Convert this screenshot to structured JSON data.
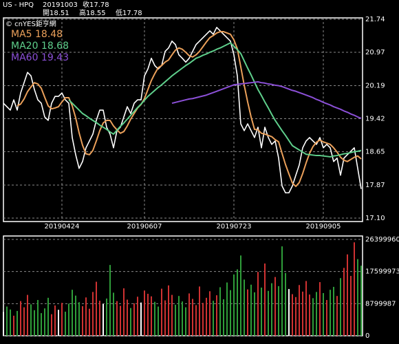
{
  "header": {
    "symbol": "US - HPQ",
    "date": "20191003",
    "close": "收17.78",
    "open": "開18.51",
    "high": "高18.55",
    "low": "低17.78",
    "watermark": "© cnYES鉅亨網"
  },
  "chart_data": [
    {
      "type": "line",
      "categories": [
        null,
        null,
        null,
        null,
        null,
        null,
        null,
        null,
        null,
        null,
        null,
        null,
        null,
        null,
        null,
        null,
        null,
        "20190424",
        null,
        null,
        null,
        null,
        null,
        null,
        null,
        null,
        null,
        null,
        null,
        null,
        null,
        null,
        null,
        null,
        null,
        null,
        null,
        null,
        null,
        null,
        null,
        "20190607",
        null,
        null,
        null,
        null,
        null,
        null,
        null,
        null,
        null,
        null,
        null,
        null,
        null,
        null,
        null,
        null,
        null,
        null,
        null,
        null,
        null,
        null,
        null,
        null,
        null,
        "20190723",
        null,
        null,
        null,
        null,
        null,
        null,
        null,
        null,
        null,
        null,
        null,
        null,
        null,
        null,
        null,
        null,
        null,
        null,
        null,
        null,
        null,
        null,
        null,
        null,
        null,
        "20190905",
        null,
        null,
        null,
        null,
        null,
        null,
        null,
        null,
        null,
        null,
        null
      ],
      "ylim": [
        17.1,
        21.74
      ],
      "yticks": [
        {
          "value": 17.1,
          "label": "17.10"
        },
        17.87,
        18.65,
        19.42,
        20.19,
        20.97,
        21.74
      ],
      "grid": true,
      "series": [
        {
          "color": "#ffffff",
          "values": [
            19.78,
            19.7,
            19.62,
            19.86,
            19.62,
            20.02,
            20.26,
            20.5,
            20.42,
            20.1,
            19.86,
            19.78,
            19.46,
            19.38,
            19.78,
            19.94,
            19.94,
            20.02,
            19.86,
            19.78,
            18.98,
            18.58,
            18.26,
            18.42,
            18.74,
            18.9,
            19.06,
            19.38,
            19.62,
            19.62,
            19.22,
            19.06,
            18.74,
            19.14,
            19.22,
            19.46,
            19.7,
            19.54,
            19.78,
            19.86,
            19.86,
            20.42,
            20.58,
            20.83,
            20.66,
            20.58,
            20.66,
            20.99,
            21.07,
            21.23,
            21.15,
            20.91,
            20.83,
            20.74,
            20.83,
            20.99,
            21.15,
            21.23,
            21.31,
            21.39,
            21.47,
            21.39,
            21.55,
            21.47,
            21.39,
            21.31,
            21.23,
            20.91,
            20.42,
            19.3,
            19.14,
            19.3,
            19.14,
            18.98,
            19.22,
            18.74,
            19.22,
            18.98,
            18.82,
            18.9,
            18.5,
            17.85,
            17.69,
            17.69,
            17.85,
            18.1,
            18.34,
            18.74,
            18.9,
            18.98,
            18.9,
            18.82,
            18.98,
            18.74,
            18.82,
            18.74,
            18.42,
            18.5,
            18.1,
            18.5,
            18.58,
            18.66,
            18.74,
            18.26,
            17.78
          ]
        },
        {
          "name": "MA5 18.48",
          "color": "#eba05a",
          "values": [
            null,
            null,
            null,
            null,
            19.72,
            19.76,
            19.88,
            20.05,
            20.16,
            20.26,
            20.23,
            20.13,
            19.92,
            19.72,
            19.65,
            19.67,
            19.7,
            19.81,
            19.91,
            19.91,
            19.72,
            19.44,
            19.09,
            18.8,
            18.6,
            18.58,
            18.68,
            18.9,
            19.14,
            19.32,
            19.38,
            19.38,
            19.25,
            19.16,
            19.08,
            19.12,
            19.25,
            19.41,
            19.54,
            19.67,
            19.75,
            19.89,
            20.1,
            20.31,
            20.47,
            20.61,
            20.66,
            20.74,
            20.79,
            20.91,
            21.02,
            21.07,
            21.04,
            20.97,
            20.89,
            20.86,
            20.91,
            20.99,
            21.1,
            21.21,
            21.31,
            21.36,
            21.42,
            21.45,
            21.45,
            21.42,
            21.39,
            21.26,
            21.05,
            20.63,
            20.2,
            19.81,
            19.46,
            19.17,
            19.16,
            19.08,
            19.06,
            19.03,
            19.0,
            18.93,
            18.88,
            18.61,
            18.35,
            18.13,
            17.92,
            17.84,
            17.93,
            18.14,
            18.39,
            18.61,
            18.77,
            18.87,
            18.92,
            18.88,
            18.85,
            18.82,
            18.74,
            18.64,
            18.52,
            18.45,
            18.42,
            18.47,
            18.52,
            18.55,
            18.48
          ]
        },
        {
          "name": "MA20 18.68",
          "color": "#5fd08c",
          "values": [
            null,
            null,
            null,
            null,
            null,
            null,
            null,
            null,
            null,
            null,
            null,
            null,
            null,
            null,
            null,
            null,
            null,
            null,
            null,
            19.86,
            19.78,
            19.7,
            19.62,
            19.54,
            19.49,
            19.43,
            19.38,
            19.33,
            19.27,
            19.22,
            19.17,
            19.11,
            19.06,
            19.15,
            19.24,
            19.32,
            19.41,
            19.5,
            19.59,
            19.68,
            19.76,
            19.85,
            19.94,
            20.01,
            20.08,
            20.15,
            20.21,
            20.28,
            20.35,
            20.42,
            20.48,
            20.54,
            20.6,
            20.66,
            20.71,
            20.77,
            20.83,
            20.86,
            20.9,
            20.93,
            20.97,
            21.0,
            21.04,
            21.07,
            21.11,
            21.15,
            21.19,
            21.11,
            21.03,
            20.94,
            20.77,
            20.6,
            20.44,
            20.27,
            20.1,
            19.96,
            19.81,
            19.67,
            19.52,
            19.38,
            19.26,
            19.14,
            19.03,
            18.91,
            18.79,
            18.74,
            18.69,
            18.64,
            18.59,
            18.58,
            18.57,
            18.56,
            18.56,
            18.55,
            18.54,
            18.53,
            18.55,
            18.56,
            18.58,
            18.6,
            18.61,
            18.63,
            18.65,
            18.66,
            18.68
          ]
        },
        {
          "name": "MA60 19.43",
          "color": "#8c50d8",
          "values": [
            null,
            null,
            null,
            null,
            null,
            null,
            null,
            null,
            null,
            null,
            null,
            null,
            null,
            null,
            null,
            null,
            null,
            null,
            null,
            null,
            null,
            null,
            null,
            null,
            null,
            null,
            null,
            null,
            null,
            null,
            null,
            null,
            null,
            null,
            null,
            null,
            null,
            null,
            null,
            null,
            null,
            null,
            null,
            null,
            null,
            null,
            null,
            null,
            null,
            19.78,
            19.8,
            19.82,
            19.84,
            19.86,
            19.88,
            19.89,
            19.91,
            19.93,
            19.95,
            19.97,
            20.0,
            20.03,
            20.06,
            20.09,
            20.12,
            20.15,
            20.18,
            20.21,
            20.22,
            20.23,
            20.24,
            20.25,
            20.26,
            20.27,
            20.28,
            20.26,
            20.25,
            20.23,
            20.22,
            20.2,
            20.19,
            20.17,
            20.14,
            20.11,
            20.08,
            20.06,
            20.03,
            20.0,
            19.97,
            19.94,
            19.91,
            19.87,
            19.84,
            19.8,
            19.77,
            19.74,
            19.7,
            19.67,
            19.64,
            19.6,
            19.57,
            19.53,
            19.5,
            19.46,
            19.43
          ]
        }
      ]
    },
    {
      "type": "bar",
      "ylim": [
        0,
        26399960
      ],
      "yticks": [
        0,
        8799987,
        17599973,
        26399960
      ],
      "grid": true,
      "up_color": "#d03232",
      "down_color": "#2f9e3a",
      "flat_color": "#ffffff",
      "values": [
        6500000,
        8000000,
        7200000,
        5500000,
        6800000,
        9500000,
        7800000,
        11200000,
        8600000,
        7000000,
        9800000,
        6200000,
        7500000,
        10400000,
        5900000,
        8300000,
        7100000,
        9000000,
        6600000,
        8800000,
        12600000,
        11000000,
        9200000,
        8100000,
        10500000,
        7400000,
        12000000,
        14800000,
        9600000,
        8700000,
        10200000,
        19400000,
        11800000,
        9500000,
        8200000,
        13000000,
        9900000,
        7600000,
        8900000,
        10700000,
        9100000,
        12400000,
        11500000,
        10800000,
        9300000,
        8000000,
        12900000,
        9700000,
        13800000,
        11200000,
        8500000,
        10900000,
        9400000,
        7800000,
        11600000,
        10100000,
        8400000,
        13500000,
        9000000,
        10400000,
        12200000,
        9600000,
        11100000,
        13300000,
        10000000,
        14600000,
        12500000,
        16800000,
        18200000,
        22000000,
        15400000,
        12700000,
        14000000,
        11900000,
        17500000,
        13200000,
        19800000,
        12300000,
        14400000,
        16100000,
        13600000,
        24500000,
        17200000,
        12800000,
        11400000,
        10600000,
        13900000,
        12100000,
        15000000,
        11300000,
        10300000,
        12000000,
        14700000,
        11700000,
        9800000,
        12600000,
        13400000,
        10900000,
        15800000,
        18600000,
        22300000,
        16400000,
        25600000,
        21000000,
        19200000
      ]
    }
  ]
}
